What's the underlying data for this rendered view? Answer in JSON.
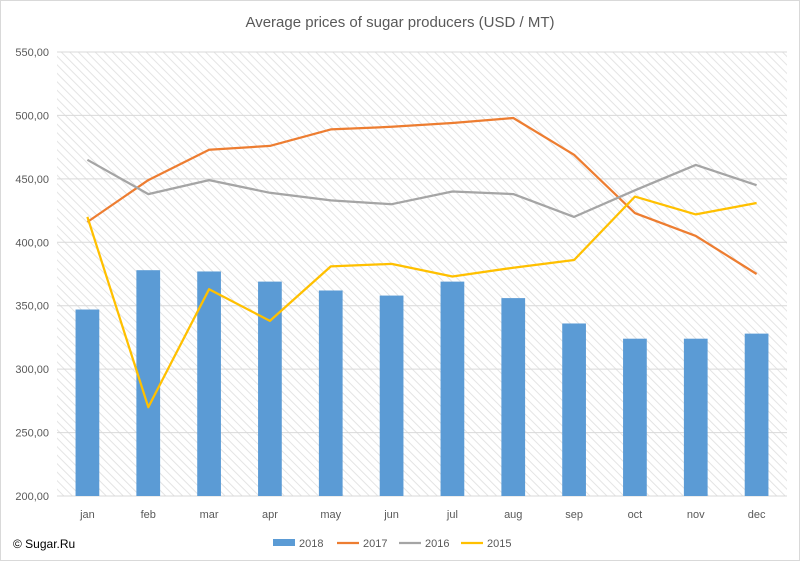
{
  "watermark": "© Sugar.Ru",
  "colors": {
    "2018": "#5b9bd5",
    "2017": "#ed7d31",
    "2016": "#a5a5a5",
    "2015": "#ffc000",
    "grid": "#d9d9d9",
    "hatch": "#e6e6e6"
  },
  "chart_data": {
    "type": "bar",
    "title": "Average prices of sugar producers (USD / MT)",
    "xlabel": "",
    "ylabel": "",
    "ylim": [
      200,
      550
    ],
    "y_ticks": [
      "200,00",
      "250,00",
      "300,00",
      "350,00",
      "400,00",
      "450,00",
      "500,00",
      "550,00"
    ],
    "categories": [
      "jan",
      "feb",
      "mar",
      "apr",
      "may",
      "jun",
      "jul",
      "aug",
      "sep",
      "oct",
      "nov",
      "dec"
    ],
    "grid": true,
    "legend_position": "bottom",
    "series": [
      {
        "name": "2018",
        "type": "bar",
        "values": [
          347,
          378,
          377,
          369,
          362,
          358,
          369,
          356,
          336,
          324,
          324,
          328
        ]
      },
      {
        "name": "2017",
        "type": "line",
        "values": [
          416,
          449,
          473,
          476,
          489,
          491,
          494,
          498,
          469,
          423,
          405,
          375
        ]
      },
      {
        "name": "2016",
        "type": "line",
        "values": [
          465,
          438,
          449,
          439,
          433,
          430,
          440,
          438,
          420,
          441,
          461,
          445
        ]
      },
      {
        "name": "2015",
        "type": "line",
        "values": [
          420,
          270,
          363,
          338,
          381,
          383,
          373,
          380,
          386,
          436,
          422,
          431
        ]
      }
    ]
  }
}
